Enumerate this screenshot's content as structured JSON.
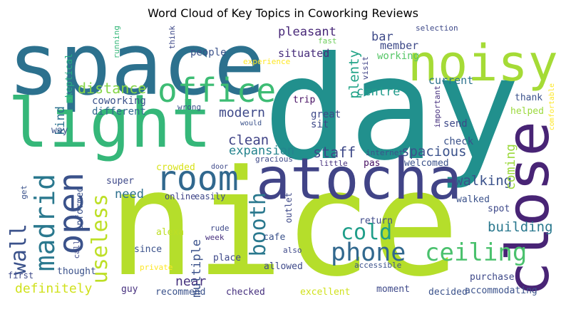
{
  "title": "Word Cloud of Key Topics in Coworking Reviews",
  "palette": [
    "#440154",
    "#472c7a",
    "#3b518b",
    "#2c718e",
    "#21908d",
    "#27ad81",
    "#5cc863",
    "#aadc32",
    "#fde725"
  ],
  "words": [
    {
      "text": "day",
      "color": "#21908d"
    },
    {
      "text": "nice",
      "color": "#b5de2b"
    },
    {
      "text": "space",
      "color": "#2c718e"
    },
    {
      "text": "light",
      "color": "#35b779"
    },
    {
      "text": "noisy",
      "color": "#a5db36"
    },
    {
      "text": "atocha",
      "color": "#414487"
    },
    {
      "text": "close",
      "color": "#482475"
    },
    {
      "text": "office",
      "color": "#3dbc74"
    },
    {
      "text": "room",
      "color": "#31688e"
    },
    {
      "text": "open",
      "color": "#3b528b"
    },
    {
      "text": "madrid",
      "color": "#2a788e"
    },
    {
      "text": "phone",
      "color": "#31688e"
    },
    {
      "text": "ceiling",
      "color": "#4ac16d"
    },
    {
      "text": "useless",
      "color": "#bddf26"
    },
    {
      "text": "cold",
      "color": "#1f9e89"
    },
    {
      "text": "booth",
      "color": "#2a788e"
    },
    {
      "text": "wall",
      "color": "#3b528b"
    },
    {
      "text": "definitely",
      "color": "#d0e11c"
    },
    {
      "text": "distance",
      "color": "#86d549"
    },
    {
      "text": "staff",
      "color": "#3e4989"
    },
    {
      "text": "spacious",
      "color": "#3b528b"
    },
    {
      "text": "walking",
      "color": "#3b528b"
    },
    {
      "text": "building",
      "color": "#2a788e"
    },
    {
      "text": "clean",
      "color": "#414487"
    },
    {
      "text": "modern",
      "color": "#3e4989"
    },
    {
      "text": "expansion",
      "color": "#25848e"
    },
    {
      "text": "plenty",
      "color": "#20a386"
    },
    {
      "text": "centre",
      "color": "#1f9a8a"
    },
    {
      "text": "coming",
      "color": "#9bd93c"
    },
    {
      "text": "near",
      "color": "#46327e"
    },
    {
      "text": "need",
      "color": "#2d708e"
    },
    {
      "text": "multiple",
      "color": "#3b528b"
    },
    {
      "text": "kind",
      "color": "#2c728e"
    },
    {
      "text": "pleasant",
      "color": "#482878"
    },
    {
      "text": "bar",
      "color": "#3e4a89"
    },
    {
      "text": "member",
      "color": "#3e4a89"
    },
    {
      "text": "situated",
      "color": "#472d7b"
    },
    {
      "text": "working",
      "color": "#56c667"
    },
    {
      "text": "current",
      "color": "#2c728e"
    },
    {
      "text": "people",
      "color": "#3b528b"
    },
    {
      "text": "coworking",
      "color": "#3b528b"
    },
    {
      "text": "different",
      "color": "#31688e"
    },
    {
      "text": "way",
      "color": "#3b528b"
    },
    {
      "text": "skeptical",
      "color": "#27ad81"
    },
    {
      "text": "running",
      "color": "#35b779"
    },
    {
      "text": "think",
      "color": "#3e4989"
    },
    {
      "text": "experience",
      "color": "#fde725"
    },
    {
      "text": "fast",
      "color": "#6ccd5a"
    },
    {
      "text": "selection",
      "color": "#3e4989"
    },
    {
      "text": "visit",
      "color": "#414487"
    },
    {
      "text": "trip",
      "color": "#471063"
    },
    {
      "text": "sit",
      "color": "#3e4989"
    },
    {
      "text": "great",
      "color": "#3e4989"
    },
    {
      "text": "wrong",
      "color": "#3b528b"
    },
    {
      "text": "important",
      "color": "#46307e"
    },
    {
      "text": "thank",
      "color": "#3b528b"
    },
    {
      "text": "helped",
      "color": "#9bd93c"
    },
    {
      "text": "comfortable",
      "color": "#fde725"
    },
    {
      "text": "send",
      "color": "#3e4989"
    },
    {
      "text": "check",
      "color": "#3b528b"
    },
    {
      "text": "internet",
      "color": "#3b528b"
    },
    {
      "text": "pas",
      "color": "#471063"
    },
    {
      "text": "welcomed",
      "color": "#3b528b"
    },
    {
      "text": "little",
      "color": "#46307e"
    },
    {
      "text": "gracious",
      "color": "#3e4989"
    },
    {
      "text": "door",
      "color": "#3e4989"
    },
    {
      "text": "would",
      "color": "#3b528b"
    },
    {
      "text": "crowded",
      "color": "#d8e219"
    },
    {
      "text": "super",
      "color": "#3e4989"
    },
    {
      "text": "informed",
      "color": "#3b528b"
    },
    {
      "text": "get",
      "color": "#3b528b"
    },
    {
      "text": "online",
      "color": "#414487"
    },
    {
      "text": "easily",
      "color": "#3e4989"
    },
    {
      "text": "outlet",
      "color": "#3e4989"
    },
    {
      "text": "walked",
      "color": "#3b528b"
    },
    {
      "text": "spot",
      "color": "#3e4989"
    },
    {
      "text": "return",
      "color": "#3e4989"
    },
    {
      "text": "rude",
      "color": "#3e4989"
    },
    {
      "text": "alexa",
      "color": "#bddf26"
    },
    {
      "text": "week",
      "color": "#46307e"
    },
    {
      "text": "cafe",
      "color": "#3b528b"
    },
    {
      "text": "call",
      "color": "#3e4989"
    },
    {
      "text": "since",
      "color": "#3b528b"
    },
    {
      "text": "place",
      "color": "#3e4989"
    },
    {
      "text": "also",
      "color": "#3e4989"
    },
    {
      "text": "accessible",
      "color": "#3b528b"
    },
    {
      "text": "first",
      "color": "#3e4989"
    },
    {
      "text": "thought",
      "color": "#3b528b"
    },
    {
      "text": "private",
      "color": "#fde725"
    },
    {
      "text": "allowed",
      "color": "#3e4989"
    },
    {
      "text": "purchase",
      "color": "#3e4989"
    },
    {
      "text": "guy",
      "color": "#46307e"
    },
    {
      "text": "recommend",
      "color": "#3b528b"
    },
    {
      "text": "checked",
      "color": "#46307e"
    },
    {
      "text": "excellent",
      "color": "#d0e11c"
    },
    {
      "text": "moment",
      "color": "#3e4989"
    },
    {
      "text": "decided",
      "color": "#3b528b"
    },
    {
      "text": "accommodating",
      "color": "#3b528b"
    }
  ]
}
